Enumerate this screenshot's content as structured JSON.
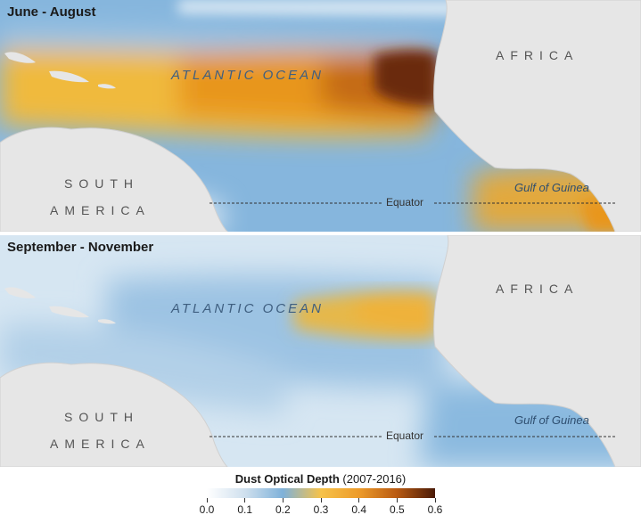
{
  "panels": [
    {
      "title": "June - August",
      "ocean_label": "ATLANTIC OCEAN",
      "continent_africa": "AFRICA",
      "continent_south_1": "SOUTH",
      "continent_south_2": "AMERICA",
      "gulf_label": "Gulf of Guinea",
      "equator_label": "Equator"
    },
    {
      "title": "September - November",
      "ocean_label": "ATLANTIC OCEAN",
      "continent_africa": "AFRICA",
      "continent_south_1": "SOUTH",
      "continent_south_2": "AMERICA",
      "gulf_label": "Gulf of Guinea",
      "equator_label": "Equator"
    }
  ],
  "legend": {
    "title_bold": "Dust Optical Depth",
    "title_rest": "(2007-2016)",
    "ticks": [
      "0.0",
      "0.1",
      "0.2",
      "0.3",
      "0.4",
      "0.5",
      "0.6"
    ],
    "range": [
      0.0,
      0.6
    ],
    "colors": [
      "#ffffff",
      "#cfe0ee",
      "#7fb1d9",
      "#f6c24a",
      "#ed9b2a",
      "#b85a12",
      "#4a1a07"
    ]
  },
  "colors": {
    "ocean_low": "#f2f7fb",
    "ocean_blue": "#86b6dd",
    "dust_yellow": "#f0ba3e",
    "dust_orange": "#e8961f",
    "dust_dark": "#5a2306",
    "land": "#e6e6e6",
    "land_edge": "#cfcfcf"
  }
}
